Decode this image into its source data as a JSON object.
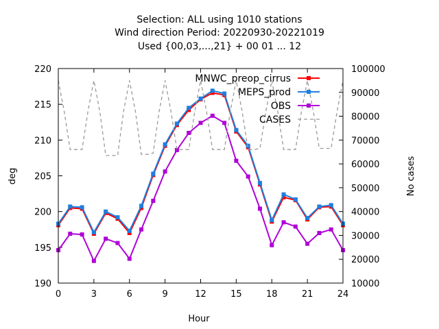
{
  "chart_data": {
    "type": "line",
    "title_lines": [
      "Selection: ALL using  1010 stations",
      "Wind direction    Period: 20220930-20221019",
      "Used {00,03,...,21} + 00 01 ... 12"
    ],
    "xlabel": "Hour",
    "ylabel": "deg",
    "y2label": "No cases",
    "xlim": [
      0,
      24
    ],
    "ylim": [
      190,
      220
    ],
    "y2lim": [
      10000,
      100000
    ],
    "x_ticks": [
      0,
      3,
      6,
      9,
      12,
      15,
      18,
      21,
      24
    ],
    "y_ticks": [
      190,
      195,
      200,
      205,
      210,
      215,
      220
    ],
    "y2_ticks": [
      10000,
      20000,
      30000,
      40000,
      50000,
      60000,
      70000,
      80000,
      90000,
      100000
    ],
    "legend_position": "top-right",
    "x": [
      0,
      1,
      2,
      3,
      4,
      5,
      6,
      7,
      8,
      9,
      10,
      11,
      12,
      13,
      14,
      15,
      16,
      17,
      18,
      19,
      20,
      21,
      22,
      23,
      24
    ],
    "series": [
      {
        "name": "MNWC_preop_cirrus",
        "color": "#ff0000",
        "marker": "square",
        "axis": "y",
        "values": [
          198.1,
          200.5,
          200.4,
          196.9,
          199.8,
          199.0,
          197.0,
          200.5,
          205.1,
          209.2,
          212.1,
          214.2,
          215.7,
          216.6,
          216.3,
          211.2,
          209.0,
          203.8,
          198.6,
          202.0,
          201.6,
          198.9,
          200.6,
          200.7,
          198.1
        ]
      },
      {
        "name": "MEPS_prod",
        "color": "#1f7fe0",
        "marker": "square",
        "axis": "y",
        "values": [
          198.3,
          200.7,
          200.6,
          197.1,
          200.0,
          199.2,
          197.3,
          200.8,
          205.3,
          209.4,
          212.3,
          214.5,
          215.8,
          216.9,
          216.5,
          211.4,
          209.2,
          204.0,
          198.8,
          202.4,
          201.7,
          199.1,
          200.7,
          200.9,
          198.3
        ]
      },
      {
        "name": "OBS",
        "color": "#b000d8",
        "marker": "square",
        "axis": "y",
        "values": [
          194.6,
          196.9,
          196.8,
          193.1,
          196.2,
          195.6,
          193.4,
          197.5,
          201.5,
          205.6,
          208.6,
          211.0,
          212.4,
          213.4,
          212.4,
          207.1,
          204.9,
          200.4,
          195.3,
          198.5,
          197.9,
          195.5,
          197.0,
          197.5,
          194.6
        ]
      },
      {
        "name": "CASES",
        "color": "#999999",
        "marker": "none",
        "dashed": true,
        "axis": "y2",
        "x": [
          0,
          0.5,
          1,
          1.5,
          2,
          2.5,
          3,
          3.5,
          4,
          4.5,
          5,
          5.5,
          6,
          6.5,
          7,
          7.5,
          8,
          8.5,
          9,
          9.5,
          10,
          10.5,
          11,
          11.5,
          12,
          12.5,
          13,
          13.5,
          14,
          14.5,
          15,
          15.5,
          16,
          16.5,
          17,
          17.5,
          18,
          18.5,
          19,
          19.5,
          20,
          20.5,
          21,
          21.5,
          22,
          22.5,
          23,
          23.5,
          24
        ],
        "values": [
          95000,
          82000,
          66000,
          66000,
          66000,
          82000,
          95000,
          82000,
          63500,
          63500,
          63500,
          82000,
          95000,
          82000,
          64000,
          64000,
          64500,
          82000,
          95000,
          82000,
          66000,
          66000,
          66000,
          82000,
          95000,
          82000,
          66000,
          66000,
          66000,
          82000,
          95000,
          82000,
          66000,
          66000,
          66500,
          82000,
          95000,
          82000,
          66000,
          66000,
          66000,
          82000,
          95000,
          82000,
          66500,
          66500,
          66500,
          82000,
          95000
        ]
      }
    ]
  }
}
